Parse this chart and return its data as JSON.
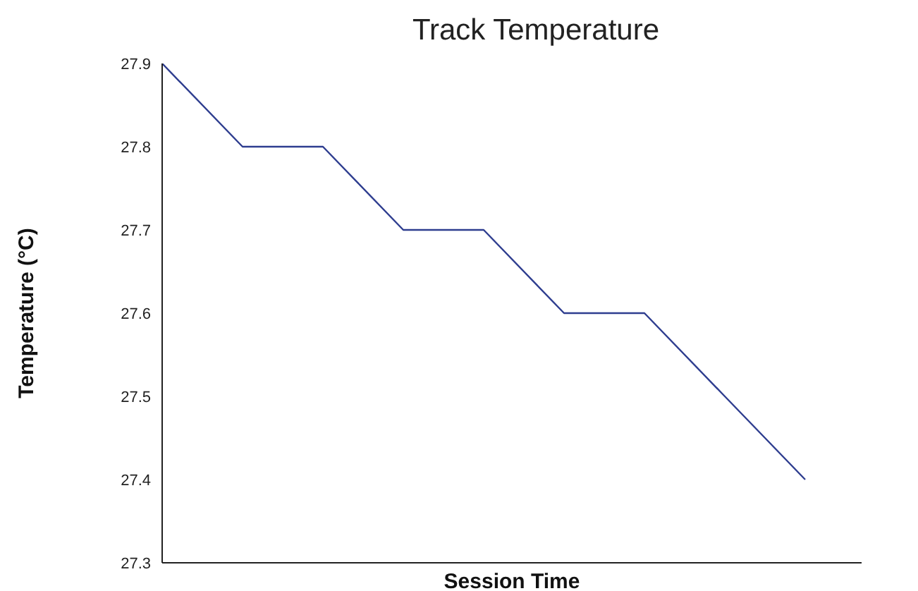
{
  "chart_data": {
    "type": "line",
    "title": "Track Temperature",
    "xlabel": "Session Time",
    "ylabel": "Temperature (°C)",
    "categories": [
      null,
      null,
      null,
      null,
      null,
      null,
      null,
      null,
      null
    ],
    "series": [
      {
        "color": "#2e3d8f",
        "values": [
          27.9,
          27.8,
          27.8,
          27.7,
          27.7,
          27.6,
          27.6,
          27.5,
          27.4
        ]
      }
    ],
    "ylim": [
      27.3,
      27.9
    ],
    "yticks": [
      27.3,
      27.4,
      27.5,
      27.6,
      27.7,
      27.8,
      27.9
    ],
    "grid": false,
    "legend": false,
    "marker": "none",
    "line_style": "solid"
  }
}
